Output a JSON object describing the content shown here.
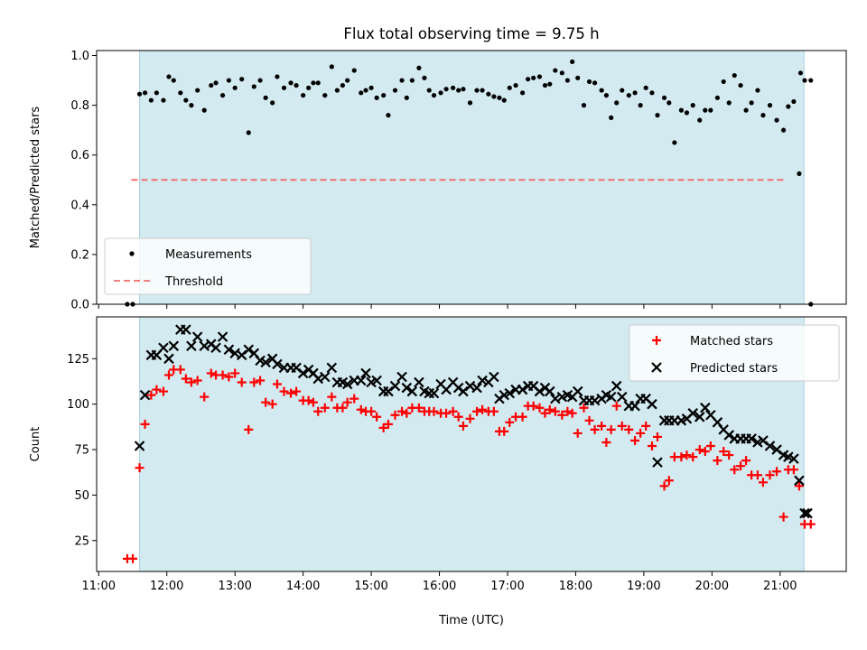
{
  "chart_data": {
    "title": "Flux total observing time = 9.75 h",
    "xlabel": "Time (UTC)",
    "xlim": [
      10.97,
      21.97
    ],
    "xticks": [
      11,
      12,
      13,
      14,
      15,
      16,
      17,
      18,
      19,
      20,
      21
    ],
    "xtick_labels": [
      "11:00",
      "12:00",
      "13:00",
      "14:00",
      "15:00",
      "16:00",
      "17:00",
      "18:00",
      "19:00",
      "20:00",
      "21:00"
    ],
    "observing_window": [
      11.6,
      21.35
    ],
    "observing_window_color": "#d3eaf0",
    "panels": [
      {
        "id": "ratio",
        "type": "scatter",
        "ylabel": "Matched/Predicted stars",
        "ylim": [
          0,
          1.02
        ],
        "yticks": [
          0.0,
          0.2,
          0.4,
          0.6,
          0.8,
          1.0
        ],
        "ytick_labels": [
          "0.0",
          "0.2",
          "0.4",
          "0.6",
          "0.8",
          "1.0"
        ],
        "legend": {
          "position": "lower-left",
          "entries": [
            {
              "label": "Measurements",
              "marker": "dot",
              "color": "#000000"
            },
            {
              "label": "Threshold",
              "marker": "dashed-line",
              "color": "#f08080"
            }
          ]
        },
        "threshold": {
          "value": 0.5,
          "x_range": [
            11.48,
            21.1
          ],
          "color": "#f07070"
        },
        "series": [
          {
            "name": "Measurements",
            "color": "#000000",
            "x": [
              11.42,
              11.5,
              11.6,
              11.68,
              11.77,
              11.85,
              11.95,
              12.03,
              12.1,
              12.2,
              12.28,
              12.36,
              12.45,
              12.55,
              12.65,
              12.72,
              12.82,
              12.91,
              13.0,
              13.1,
              13.2,
              13.28,
              13.37,
              13.45,
              13.55,
              13.62,
              13.72,
              13.82,
              13.9,
              14.0,
              14.08,
              14.15,
              14.22,
              14.32,
              14.42,
              14.5,
              14.58,
              14.65,
              14.75,
              14.85,
              14.92,
              15.0,
              15.08,
              15.18,
              15.25,
              15.35,
              15.45,
              15.52,
              15.6,
              15.7,
              15.78,
              15.85,
              15.92,
              16.02,
              16.1,
              16.2,
              16.28,
              16.35,
              16.45,
              16.55,
              16.63,
              16.72,
              16.8,
              16.88,
              16.95,
              17.03,
              17.12,
              17.22,
              17.3,
              17.38,
              17.47,
              17.55,
              17.62,
              17.7,
              17.8,
              17.88,
              17.95,
              18.03,
              18.12,
              18.2,
              18.28,
              18.38,
              18.45,
              18.52,
              18.6,
              18.68,
              18.78,
              18.87,
              18.95,
              19.03,
              19.12,
              19.2,
              19.3,
              19.37,
              19.45,
              19.55,
              19.63,
              19.72,
              19.82,
              19.9,
              19.98,
              20.08,
              20.17,
              20.25,
              20.33,
              20.42,
              20.5,
              20.58,
              20.67,
              20.75,
              20.85,
              20.95,
              21.05,
              21.12,
              21.2,
              21.28,
              21.36,
              21.45
            ],
            "y": [
              0.0,
              0.0,
              0.845,
              0.85,
              0.82,
              0.85,
              0.82,
              0.915,
              0.9,
              0.85,
              0.82,
              0.8,
              0.86,
              0.78,
              0.88,
              0.89,
              0.84,
              0.9,
              0.87,
              0.905,
              0.69,
              0.875,
              0.9,
              0.83,
              0.81,
              0.915,
              0.87,
              0.89,
              0.88,
              0.84,
              0.87,
              0.89,
              0.89,
              0.84,
              0.955,
              0.86,
              0.88,
              0.9,
              0.94,
              0.85,
              0.86,
              0.87,
              0.83,
              0.84,
              0.76,
              0.86,
              0.9,
              0.83,
              0.9,
              0.95,
              0.91,
              0.86,
              0.84,
              0.85,
              0.865,
              0.87,
              0.86,
              0.865,
              0.81,
              0.86,
              0.86,
              0.845,
              0.835,
              0.83,
              0.82,
              0.87,
              0.88,
              0.85,
              0.905,
              0.91,
              0.915,
              0.88,
              0.885,
              0.94,
              0.93,
              0.9,
              0.975,
              0.91,
              0.8,
              0.895,
              0.89,
              0.86,
              0.84,
              0.75,
              0.81,
              0.86,
              0.84,
              0.85,
              0.8,
              0.87,
              0.85,
              0.76,
              0.83,
              0.81,
              0.65,
              0.78,
              0.77,
              0.8,
              0.74,
              0.78,
              0.78,
              0.83,
              0.895,
              0.81,
              0.92,
              0.88,
              0.78,
              0.81,
              0.86,
              0.76,
              0.8,
              0.74,
              0.7,
              0.795,
              0.815,
              0.525,
              0.9,
              0.9
            ],
            "y_high_outliers": [
              {
                "x": 21.3,
                "y": 0.93
              }
            ],
            "y_extra": [
              {
                "x": 21.45,
                "y": 0.0
              }
            ]
          }
        ]
      },
      {
        "id": "count",
        "type": "scatter",
        "ylabel": "Count",
        "ylim": [
          8,
          148
        ],
        "yticks": [
          25,
          50,
          75,
          100,
          125
        ],
        "ytick_labels": [
          "25",
          "50",
          "75",
          "100",
          "125"
        ],
        "legend": {
          "position": "top-right",
          "entries": [
            {
              "label": "Matched stars",
              "marker": "plus",
              "color": "#ff0000"
            },
            {
              "label": "Predicted stars",
              "marker": "x",
              "color": "#000000"
            }
          ]
        },
        "series": [
          {
            "name": "Matched stars",
            "marker": "plus",
            "color": "#ff0000",
            "x": [
              11.42,
              11.5,
              11.6,
              11.68,
              11.77,
              11.85,
              11.95,
              12.03,
              12.1,
              12.2,
              12.28,
              12.36,
              12.45,
              12.55,
              12.65,
              12.72,
              12.82,
              12.91,
              13.0,
              13.1,
              13.2,
              13.28,
              13.37,
              13.45,
              13.55,
              13.62,
              13.72,
              13.82,
              13.9,
              14.0,
              14.08,
              14.15,
              14.22,
              14.32,
              14.42,
              14.5,
              14.58,
              14.65,
              14.75,
              14.85,
              14.92,
              15.0,
              15.08,
              15.18,
              15.25,
              15.35,
              15.45,
              15.52,
              15.6,
              15.7,
              15.78,
              15.85,
              15.92,
              16.02,
              16.1,
              16.2,
              16.28,
              16.35,
              16.45,
              16.55,
              16.63,
              16.72,
              16.8,
              16.88,
              16.95,
              17.03,
              17.12,
              17.22,
              17.3,
              17.38,
              17.47,
              17.55,
              17.62,
              17.7,
              17.8,
              17.88,
              17.95,
              18.03,
              18.12,
              18.2,
              18.28,
              18.38,
              18.45,
              18.52,
              18.6,
              18.68,
              18.78,
              18.87,
              18.95,
              19.03,
              19.12,
              19.2,
              19.3,
              19.37,
              19.45,
              19.55,
              19.63,
              19.72,
              19.82,
              19.9,
              19.98,
              20.08,
              20.17,
              20.25,
              20.33,
              20.42,
              20.5,
              20.58,
              20.67,
              20.75,
              20.85,
              20.95,
              21.05,
              21.12,
              21.2,
              21.28,
              21.36,
              21.45
            ],
            "y": [
              15,
              15,
              65,
              89,
              105,
              108,
              107,
              116,
              119,
              119,
              114,
              112,
              113,
              104,
              117,
              116,
              116,
              115,
              117,
              112,
              86,
              112,
              113,
              101,
              100,
              111,
              107,
              106,
              107,
              102,
              102,
              101,
              96,
              98,
              104,
              98,
              98,
              101,
              103,
              97,
              96,
              96,
              93,
              87,
              89,
              94,
              96,
              95,
              98,
              98,
              96,
              96,
              96,
              95,
              95,
              96,
              93,
              88,
              92,
              96,
              97,
              96,
              96,
              85,
              85,
              90,
              93,
              93,
              99,
              99,
              98,
              95,
              97,
              96,
              94,
              96,
              95,
              84,
              98,
              91,
              86,
              88,
              79,
              86,
              99,
              88,
              86,
              80,
              84,
              88,
              77,
              82,
              55,
              58,
              71,
              71,
              72,
              71,
              75,
              74,
              77,
              69,
              74,
              72,
              64,
              66,
              69,
              61,
              61,
              57,
              61,
              63,
              38,
              64,
              64,
              55,
              34,
              34
            ]
          },
          {
            "name": "Predicted stars",
            "marker": "x",
            "color": "#000000",
            "x": [
              11.6,
              11.68,
              11.77,
              11.85,
              11.95,
              12.03,
              12.1,
              12.2,
              12.28,
              12.36,
              12.45,
              12.55,
              12.65,
              12.72,
              12.82,
              12.91,
              13.0,
              13.1,
              13.2,
              13.28,
              13.37,
              13.45,
              13.55,
              13.62,
              13.72,
              13.82,
              13.9,
              14.0,
              14.08,
              14.15,
              14.22,
              14.32,
              14.42,
              14.5,
              14.58,
              14.65,
              14.75,
              14.85,
              14.92,
              15.0,
              15.08,
              15.18,
              15.25,
              15.35,
              15.45,
              15.52,
              15.6,
              15.7,
              15.78,
              15.85,
              15.92,
              16.02,
              16.1,
              16.2,
              16.28,
              16.35,
              16.45,
              16.55,
              16.63,
              16.72,
              16.8,
              16.88,
              16.95,
              17.03,
              17.12,
              17.22,
              17.3,
              17.38,
              17.47,
              17.55,
              17.62,
              17.7,
              17.8,
              17.88,
              17.95,
              18.03,
              18.12,
              18.2,
              18.28,
              18.38,
              18.45,
              18.52,
              18.6,
              18.68,
              18.78,
              18.87,
              18.95,
              19.03,
              19.12,
              19.2,
              19.3,
              19.37,
              19.45,
              19.55,
              19.63,
              19.72,
              19.82,
              19.9,
              19.98,
              20.08,
              20.17,
              20.25,
              20.33,
              20.42,
              20.5,
              20.58,
              20.67,
              20.75,
              20.85,
              20.95,
              21.05,
              21.12,
              21.2,
              21.28,
              21.36,
              21.4
            ],
            "y": [
              77,
              105,
              127,
              127,
              131,
              125,
              132,
              141,
              141,
              132,
              137,
              132,
              133,
              131,
              137,
              130,
              128,
              127,
              130,
              128,
              124,
              123,
              125,
              122,
              120,
              120,
              120,
              117,
              119,
              117,
              114,
              115,
              120,
              112,
              112,
              111,
              113,
              113,
              117,
              112,
              113,
              107,
              107,
              110,
              115,
              109,
              107,
              112,
              107,
              106,
              106,
              111,
              108,
              112,
              109,
              107,
              110,
              109,
              113,
              112,
              115,
              103,
              105,
              106,
              108,
              108,
              110,
              110,
              107,
              109,
              107,
              103,
              104,
              105,
              104,
              107,
              102,
              102,
              102,
              103,
              105,
              104,
              110,
              104,
              99,
              99,
              103,
              103,
              100,
              68,
              91,
              91,
              91,
              91,
              92,
              95,
              93,
              98,
              94,
              90,
              86,
              83,
              81,
              81,
              81,
              81,
              79,
              80,
              77,
              75,
              72,
              71,
              70,
              58,
              40,
              40
            ]
          }
        ]
      }
    ]
  }
}
